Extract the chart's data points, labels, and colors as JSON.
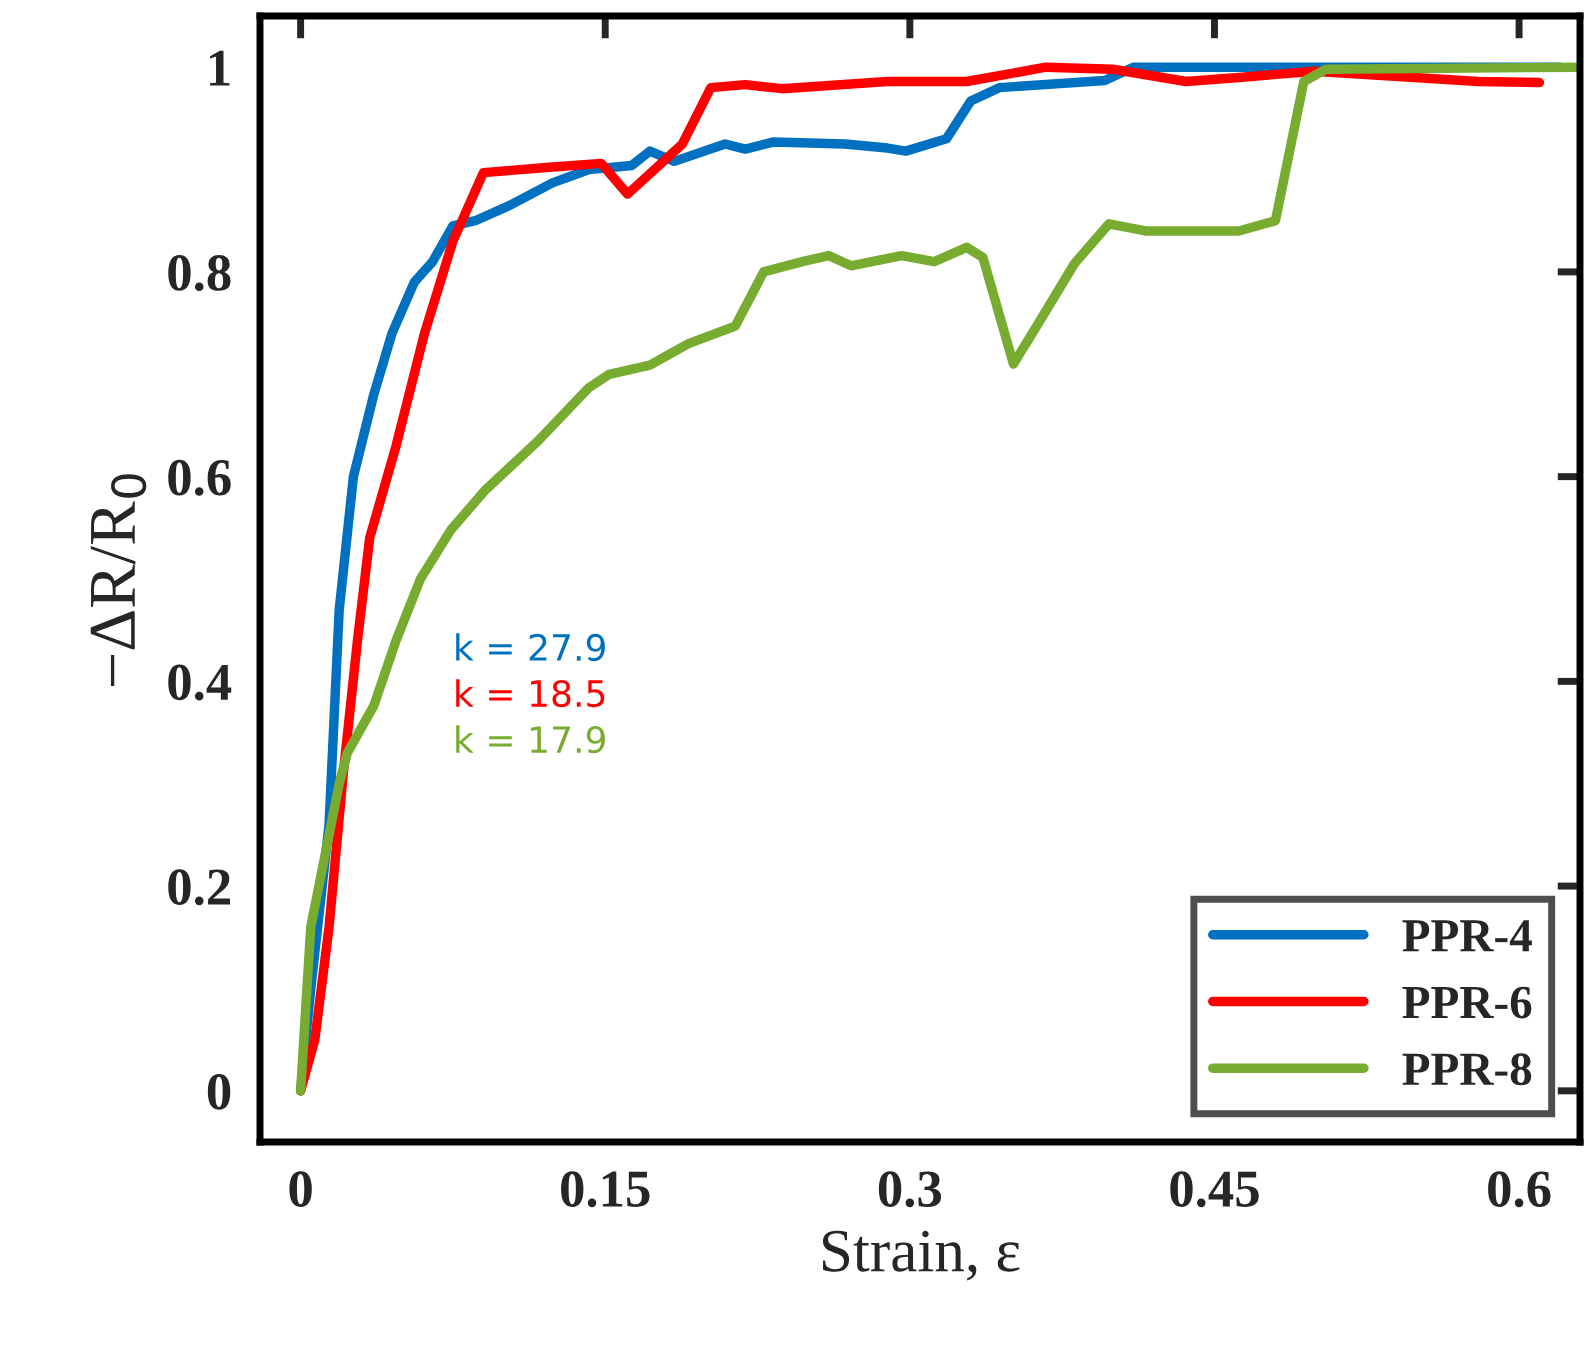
{
  "chart_data": {
    "type": "line",
    "xlabel": "Strain, ε",
    "ylabel": "−ΔR/R$_{0}$",
    "xlim": [
      -0.02,
      0.63
    ],
    "ylim": [
      -0.05,
      1.05
    ],
    "xticks": [
      0,
      0.15,
      0.3,
      0.45,
      0.6
    ],
    "yticks": [
      0,
      0.2,
      0.4,
      0.6,
      0.8,
      1
    ],
    "grid": false,
    "legend": "bottom right",
    "line_style": "solid",
    "marker": "none",
    "annotations": [
      "k = 27.9",
      "k = 18.5",
      "k = 17.9"
    ],
    "series": [
      {
        "name": "PPR-4",
        "color": "#0070c0",
        "x": [
          0,
          0.005,
          0.014,
          0.019,
          0.026,
          0.036,
          0.045,
          0.056,
          0.065,
          0.075,
          0.086,
          0.103,
          0.124,
          0.142,
          0.163,
          0.172,
          0.184,
          0.209,
          0.219,
          0.233,
          0.268,
          0.289,
          0.298,
          0.318,
          0.33,
          0.344,
          0.396,
          0.41,
          0.62
        ],
        "values": [
          0,
          0.1,
          0.26,
          0.47,
          0.6,
          0.68,
          0.74,
          0.79,
          0.81,
          0.845,
          0.85,
          0.865,
          0.887,
          0.9,
          0.904,
          0.918,
          0.908,
          0.925,
          0.92,
          0.927,
          0.925,
          0.921,
          0.918,
          0.93,
          0.967,
          0.98,
          0.987,
          1,
          1
        ]
      },
      {
        "name": "PPR-6",
        "color": "#ff0000",
        "x": [
          0,
          0.007,
          0.014,
          0.021,
          0.028,
          0.034,
          0.047,
          0.061,
          0.075,
          0.09,
          0.121,
          0.148,
          0.161,
          0.188,
          0.202,
          0.219,
          0.237,
          0.289,
          0.328,
          0.367,
          0.4,
          0.436,
          0.462,
          0.499,
          0.58,
          0.61
        ],
        "values": [
          0,
          0.05,
          0.16,
          0.31,
          0.44,
          0.54,
          0.63,
          0.74,
          0.83,
          0.897,
          0.902,
          0.906,
          0.876,
          0.925,
          0.98,
          0.983,
          0.979,
          0.986,
          0.986,
          1,
          0.998,
          0.986,
          0.99,
          0.996,
          0.986,
          0.985
        ]
      },
      {
        "name": "PPR-8",
        "color": "#77ac30",
        "x": [
          0,
          0.005,
          0.012,
          0.019,
          0.023,
          0.036,
          0.047,
          0.059,
          0.074,
          0.091,
          0.117,
          0.142,
          0.152,
          0.172,
          0.191,
          0.214,
          0.228,
          0.247,
          0.26,
          0.271,
          0.296,
          0.312,
          0.328,
          0.336,
          0.351,
          0.364,
          0.381,
          0.398,
          0.416,
          0.462,
          0.48,
          0.494,
          0.505,
          0.63
        ],
        "values": [
          0,
          0.16,
          0.23,
          0.3,
          0.33,
          0.376,
          0.44,
          0.5,
          0.548,
          0.587,
          0.635,
          0.687,
          0.7,
          0.709,
          0.73,
          0.747,
          0.8,
          0.81,
          0.816,
          0.806,
          0.816,
          0.81,
          0.824,
          0.814,
          0.71,
          0.752,
          0.808,
          0.847,
          0.84,
          0.84,
          0.85,
          0.986,
          0.998,
          1
        ]
      }
    ]
  }
}
